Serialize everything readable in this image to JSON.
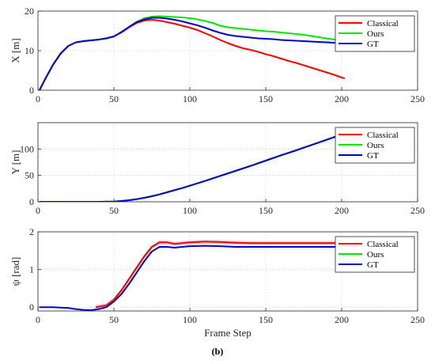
{
  "figure": {
    "caption": "(b)"
  },
  "colors": {
    "Classical": "#ff0000",
    "Ours": "#00e600",
    "GT": "#0000cc",
    "psi_band": "#f4c8e4"
  },
  "chart_data": [
    {
      "type": "line",
      "ylabel": "X [m]",
      "xlabel": "",
      "xlim": [
        0,
        250
      ],
      "ylim": [
        0,
        20
      ],
      "xticks": [
        0,
        50,
        100,
        150,
        200,
        250
      ],
      "yticks": [
        0,
        10,
        20
      ],
      "grid": true,
      "legend": "top-right",
      "series": [
        {
          "name": "Classical",
          "x": [
            1,
            5,
            10,
            15,
            20,
            25,
            30,
            35,
            40,
            45,
            50,
            55,
            60,
            65,
            70,
            75,
            80,
            85,
            90,
            95,
            100,
            105,
            110,
            115,
            120,
            125,
            130,
            135,
            140,
            145,
            150,
            155,
            160,
            165,
            170,
            175,
            180,
            185,
            190,
            195,
            200,
            202
          ],
          "y": [
            0,
            3,
            6.5,
            9.3,
            11.2,
            12.1,
            12.4,
            12.6,
            12.8,
            13.1,
            13.6,
            14.6,
            15.9,
            17,
            17.6,
            17.8,
            17.6,
            17.2,
            16.8,
            16.3,
            15.8,
            15.2,
            14.4,
            13.6,
            12.7,
            11.9,
            11.2,
            10.6,
            10.2,
            9.7,
            9.1,
            8.6,
            8,
            7.4,
            6.9,
            6.3,
            5.7,
            5.1,
            4.5,
            3.9,
            3.2,
            3
          ]
        },
        {
          "name": "Ours",
          "x": [
            1,
            5,
            10,
            15,
            20,
            25,
            30,
            35,
            40,
            45,
            50,
            55,
            60,
            65,
            70,
            75,
            80,
            85,
            90,
            95,
            100,
            105,
            110,
            115,
            120,
            125,
            130,
            135,
            140,
            145,
            150,
            155,
            160,
            165,
            170,
            175,
            180,
            185,
            190,
            195,
            200,
            202
          ],
          "y": [
            0,
            3,
            6.5,
            9.3,
            11.2,
            12.1,
            12.4,
            12.6,
            12.8,
            13.1,
            13.6,
            14.7,
            16,
            17.3,
            18.2,
            18.6,
            18.7,
            18.6,
            18.5,
            18.4,
            18.2,
            17.9,
            17.5,
            17,
            16.3,
            15.9,
            15.7,
            15.5,
            15.3,
            15.1,
            14.9,
            14.8,
            14.6,
            14.4,
            14.2,
            14,
            13.7,
            13.4,
            13.1,
            12.8,
            12.5,
            12.4
          ]
        },
        {
          "name": "GT",
          "x": [
            1,
            5,
            10,
            15,
            20,
            25,
            30,
            35,
            40,
            45,
            50,
            55,
            60,
            65,
            70,
            75,
            80,
            85,
            90,
            95,
            100,
            105,
            110,
            115,
            120,
            125,
            130,
            135,
            140,
            145,
            150,
            155,
            160,
            165,
            170,
            175,
            180,
            185,
            190,
            195,
            200,
            202
          ],
          "y": [
            0,
            3,
            6.5,
            9.3,
            11.2,
            12.1,
            12.4,
            12.6,
            12.8,
            13.1,
            13.6,
            14.7,
            16,
            17.2,
            17.9,
            18.3,
            18.3,
            18.1,
            17.8,
            17.4,
            16.9,
            16.4,
            15.8,
            15.1,
            14.5,
            14,
            13.7,
            13.5,
            13.3,
            13.1,
            13,
            12.9,
            12.7,
            12.6,
            12.5,
            12.4,
            12.3,
            12.2,
            12.1,
            12,
            11.9,
            11.8
          ]
        }
      ]
    },
    {
      "type": "line",
      "ylabel": "Y [m]",
      "xlabel": "",
      "xlim": [
        0,
        250
      ],
      "ylim": [
        0,
        150
      ],
      "xticks": [
        0,
        50,
        100,
        150,
        200,
        250
      ],
      "yticks": [
        0,
        50,
        100
      ],
      "grid": true,
      "legend": "top-right",
      "series": [
        {
          "name": "Classical",
          "x": [
            1,
            20,
            40,
            50,
            55,
            60,
            65,
            70,
            75,
            80,
            85,
            90,
            95,
            100,
            110,
            120,
            130,
            140,
            150,
            160,
            170,
            180,
            190,
            200,
            202
          ],
          "y": [
            0,
            0,
            0,
            0.5,
            1.5,
            3,
            5,
            7.5,
            10.5,
            14,
            18,
            22,
            26,
            30.5,
            39.5,
            49,
            58.5,
            68,
            78,
            88,
            97.5,
            107.5,
            117.5,
            127.5,
            130
          ]
        },
        {
          "name": "Ours",
          "x": [
            1,
            20,
            40,
            50,
            55,
            60,
            65,
            70,
            75,
            80,
            85,
            90,
            95,
            100,
            110,
            120,
            130,
            140,
            150,
            160,
            170,
            180,
            190,
            200,
            202
          ],
          "y": [
            0,
            0,
            0,
            0.5,
            1.5,
            3,
            5,
            7.5,
            10.5,
            14,
            18,
            22,
            26,
            30.5,
            39.5,
            49,
            58.5,
            68,
            78,
            88,
            97.5,
            107.5,
            117.5,
            127.5,
            130
          ]
        },
        {
          "name": "GT",
          "x": [
            1,
            20,
            40,
            50,
            55,
            60,
            65,
            70,
            75,
            80,
            85,
            90,
            95,
            100,
            110,
            120,
            130,
            140,
            150,
            160,
            170,
            180,
            190,
            200,
            202
          ],
          "y": [
            0,
            0,
            0,
            0.5,
            1.5,
            3,
            5,
            7.5,
            10.5,
            14,
            18,
            22,
            26,
            30.5,
            39.5,
            49,
            58.5,
            68,
            78,
            88,
            97.5,
            107.5,
            117.5,
            127.5,
            130
          ]
        }
      ]
    },
    {
      "type": "line",
      "ylabel": "ψ [rad]",
      "xlabel": "Frame Step",
      "xlim": [
        0,
        250
      ],
      "ylim": [
        -0.1,
        2
      ],
      "xticks": [
        0,
        50,
        100,
        150,
        200,
        250
      ],
      "yticks": [
        0,
        1,
        2
      ],
      "grid": true,
      "legend": "top-right",
      "series": [
        {
          "name": "Classical",
          "x": [
            38,
            45,
            50,
            55,
            60,
            65,
            70,
            75,
            80,
            85,
            90,
            95,
            100,
            110,
            120,
            130,
            140,
            150,
            160,
            170,
            180,
            190,
            200
          ],
          "y": [
            0,
            0.05,
            0.2,
            0.45,
            0.75,
            1.05,
            1.35,
            1.6,
            1.72,
            1.72,
            1.68,
            1.7,
            1.72,
            1.74,
            1.73,
            1.71,
            1.7,
            1.7,
            1.7,
            1.7,
            1.7,
            1.7,
            1.7
          ]
        },
        {
          "name": "Ours",
          "x": [
            38,
            45,
            50,
            55,
            60,
            65,
            70,
            75,
            80,
            85,
            90,
            95,
            100,
            110,
            120,
            130,
            140,
            150,
            160,
            170,
            180,
            190,
            200
          ],
          "y": [
            0,
            0.05,
            0.2,
            0.45,
            0.75,
            1.05,
            1.35,
            1.6,
            1.72,
            1.72,
            1.68,
            1.7,
            1.72,
            1.74,
            1.73,
            1.71,
            1.7,
            1.7,
            1.7,
            1.7,
            1.7,
            1.7,
            1.7
          ]
        },
        {
          "name": "GT",
          "x": [
            1,
            10,
            20,
            25,
            30,
            35,
            40,
            45,
            50,
            55,
            60,
            65,
            70,
            75,
            80,
            85,
            90,
            95,
            100,
            110,
            120,
            130,
            140,
            150,
            160,
            170,
            180,
            190,
            200
          ],
          "y": [
            0,
            0,
            -0.02,
            -0.05,
            -0.07,
            -0.08,
            -0.05,
            0,
            0.15,
            0.35,
            0.62,
            0.92,
            1.22,
            1.48,
            1.6,
            1.6,
            1.58,
            1.6,
            1.62,
            1.63,
            1.62,
            1.6,
            1.6,
            1.6,
            1.6,
            1.6,
            1.6,
            1.6,
            1.6
          ]
        }
      ]
    }
  ]
}
